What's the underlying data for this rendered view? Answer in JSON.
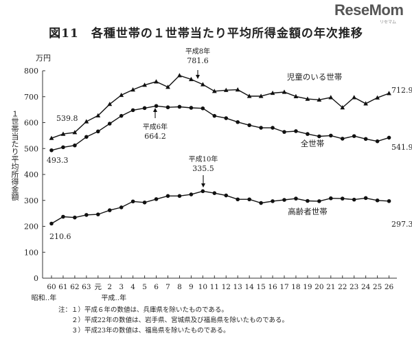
{
  "brand": {
    "logo": "ReseMom",
    "logo_sub": "リセマム"
  },
  "title": "図11　各種世帯の１世帯当たり平均所得金額の年次推移",
  "notes": [
    "注：１）平成６年の数値は、兵庫県を除いたものである。",
    "　　２）平成22年の数値は、岩手県、宮城県及び福島県を除いたものである。",
    "　　３）平成23年の数値は、福島県を除いたものである。"
  ],
  "chart_data": {
    "type": "line",
    "unit": "万円",
    "ylabel": "１世帯当たり平均所得金額",
    "ylim": [
      0,
      800
    ],
    "yticks": [
      0,
      100,
      200,
      300,
      400,
      500,
      600,
      700,
      800
    ],
    "grid": false,
    "categories": [
      "60",
      "61",
      "62",
      "63",
      "元",
      "2",
      "3",
      "4",
      "5",
      "6",
      "7",
      "8",
      "9",
      "10",
      "11",
      "12",
      "13",
      "14",
      "15",
      "16",
      "17",
      "18",
      "19",
      "20",
      "21",
      "22",
      "23",
      "24",
      "25",
      "26"
    ],
    "era_labels": [
      "昭和‥年",
      "平成‥年"
    ],
    "series": [
      {
        "name": "児童のいる世帯",
        "marker": "triangle",
        "values": [
          539.8,
          556,
          562,
          604,
          627,
          671,
          706,
          727,
          745,
          758,
          737,
          781.6,
          767,
          747,
          721,
          725,
          727,
          702,
          702,
          714,
          718,
          701,
          691,
          688,
          697,
          658,
          697,
          673,
          696,
          712.9
        ]
      },
      {
        "name": "全世帯",
        "marker": "circle",
        "values": [
          493.3,
          505,
          512,
          545,
          566,
          596,
          626,
          648,
          656,
          664.2,
          659,
          661,
          657,
          655,
          626,
          617,
          602,
          590,
          580,
          580,
          564,
          567,
          556,
          547,
          550,
          538,
          548,
          537,
          528,
          541.9
        ]
      },
      {
        "name": "高齢者世帯",
        "marker": "circle",
        "values": [
          210.6,
          237,
          234,
          244,
          246,
          262,
          273,
          296,
          292,
          305,
          317,
          317,
          323,
          335.5,
          328,
          319,
          304,
          304,
          290,
          297,
          302,
          307,
          298,
          297,
          308,
          307,
          303,
          309,
          300,
          297.3
        ]
      }
    ],
    "annotations": [
      {
        "series": 0,
        "index": 0,
        "text": [
          "539.8"
        ],
        "arrow": false
      },
      {
        "series": 0,
        "index": 7,
        "text": [
          "平成8年",
          "781.6"
        ],
        "arrow": true
      },
      {
        "series": 0,
        "index": 29,
        "text": [
          "712.9"
        ],
        "arrow": false
      },
      {
        "series": 1,
        "index": 0,
        "text": [
          "493.3"
        ],
        "arrow": false
      },
      {
        "series": 1,
        "index": 9,
        "text": [
          "平成6年",
          "664.2"
        ],
        "arrow": true
      },
      {
        "series": 1,
        "index": 29,
        "text": [
          "541.9"
        ],
        "arrow": false
      },
      {
        "series": 2,
        "index": 0,
        "text": [
          "210.6"
        ],
        "arrow": false
      },
      {
        "series": 2,
        "index": 13,
        "text": [
          "平成10年",
          "335.5"
        ],
        "arrow": true
      },
      {
        "series": 2,
        "index": 29,
        "text": [
          "297.3"
        ],
        "arrow": false
      }
    ]
  }
}
